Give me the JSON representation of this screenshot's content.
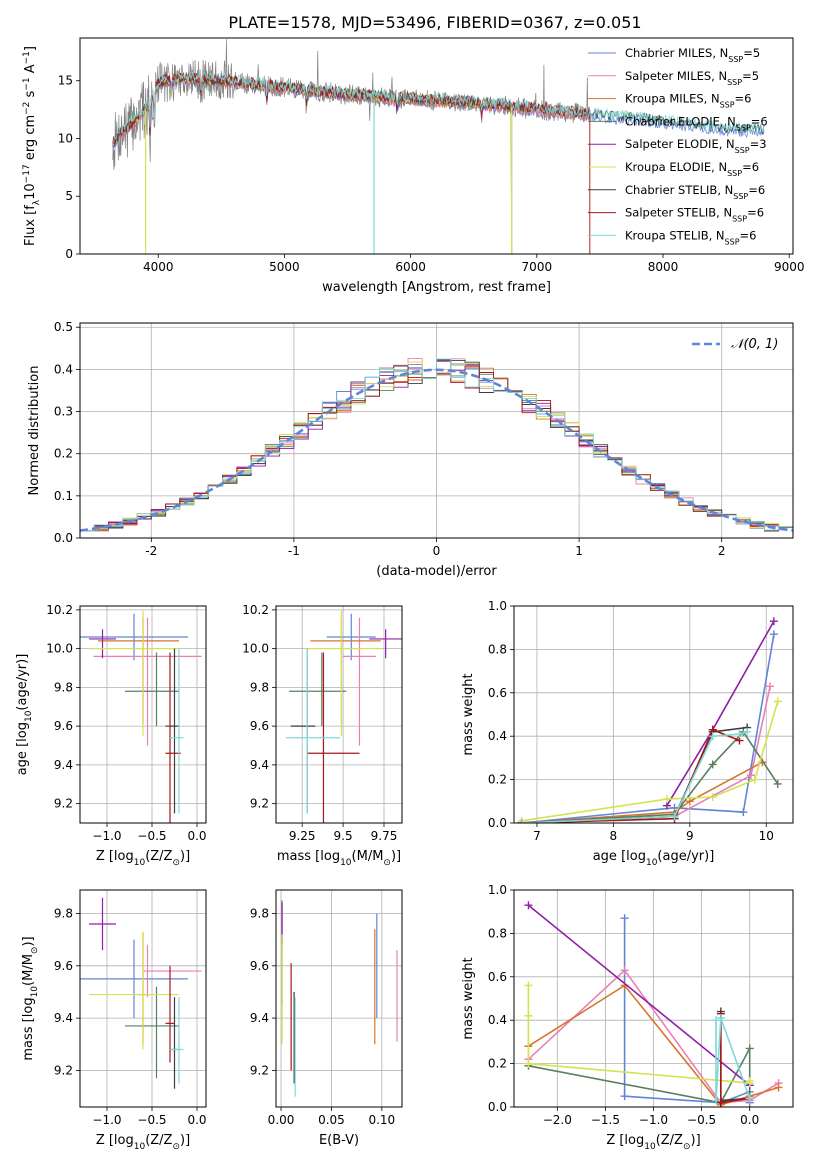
{
  "figure": {
    "title": "PLATE=1578, MJD=53496, FIBERID=0367, z=0.051",
    "colors": [
      "#5f86d6",
      "#e97fb6",
      "#d6752d",
      "#5a7f5f",
      "#8f1fa6",
      "#d4e24f",
      "#3d3d3d",
      "#a91616",
      "#7fd8d8"
    ]
  },
  "legend": {
    "models": [
      {
        "name": "Chabrier MILES",
        "sub": "SSP",
        "n": "=5"
      },
      {
        "name": "Salpeter MILES",
        "sub": "SSP",
        "n": "=5"
      },
      {
        "name": "Kroupa MILES",
        "sub": "SSP",
        "n": "=6"
      },
      {
        "name": "Chabrier ELODIE",
        "sub": "SSP",
        "n": "=6"
      },
      {
        "name": "Salpeter ELODIE",
        "sub": "SSP",
        "n": "=3"
      },
      {
        "name": "Kroupa ELODIE",
        "sub": "SSP",
        "n": "=6"
      },
      {
        "name": "Chabrier STELIB",
        "sub": "SSP",
        "n": "=6"
      },
      {
        "name": "Salpeter STELIB",
        "sub": "SSP",
        "n": "=6"
      },
      {
        "name": "Kroupa STELIB",
        "sub": "SSP",
        "n": "=6"
      }
    ]
  },
  "chart_data": [
    {
      "id": "spectrum",
      "type": "line",
      "xlabel": "wavelength [Angstrom, rest frame]",
      "ylabel_parts": {
        "a": "Flux [f",
        "a_sub": "λ",
        "b": "10",
        "b_sup": "−17",
        "c": " erg cm",
        "c_sup": "−2",
        "d": " s",
        "d_sup": "−1",
        "e": " A",
        "e_sup": "−1",
        "f": "]"
      },
      "xlim": [
        3380,
        9030
      ],
      "ylim": [
        0,
        18.7
      ],
      "xticks": [
        4000,
        5000,
        6000,
        7000,
        8000,
        9000
      ],
      "yticks": [
        0,
        5,
        10,
        15
      ],
      "grid": false,
      "legend_position": "upper right",
      "data_series": {
        "name": "",
        "x_range": [
          3640,
          7420
        ],
        "color": "#808080"
      },
      "model_series": {
        "x_range": [
          3640,
          8800
        ],
        "color": "#7fd8d8"
      },
      "continuum_shape": [
        [
          3640,
          9.5
        ],
        [
          3700,
          10.5
        ],
        [
          3800,
          11.3
        ],
        [
          3900,
          12.6
        ],
        [
          4000,
          14.8
        ],
        [
          4200,
          15.2
        ],
        [
          4500,
          15.0
        ],
        [
          5000,
          14.4
        ],
        [
          5500,
          13.8
        ],
        [
          6000,
          13.4
        ],
        [
          6500,
          13.1
        ],
        [
          7000,
          12.5
        ],
        [
          7500,
          12.0
        ],
        [
          8000,
          11.5
        ],
        [
          8500,
          10.8
        ],
        [
          8800,
          10.7
        ]
      ]
    },
    {
      "id": "residuals",
      "type": "step",
      "xlabel": "(data-model)/error",
      "ylabel": "Normed distribution",
      "xlim": [
        -2.5,
        2.5
      ],
      "ylim": [
        0,
        0.51
      ],
      "xticks": [
        -2,
        -1,
        0,
        1,
        2
      ],
      "yticks": [
        0.0,
        0.1,
        0.2,
        0.3,
        0.4,
        0.5
      ],
      "grid": true,
      "bin_width": 0.1,
      "bin_start": -2.5,
      "bin_count": 50,
      "reference": {
        "label": "𝒩(0, 1)",
        "mean": 0,
        "sigma": 1,
        "color": "#5f86d6"
      },
      "legend_position": "upper right"
    },
    {
      "id": "age-z",
      "type": "errorbar",
      "xlabel_parts": {
        "a": "Z [log",
        "a_sub": "10",
        "b": "(Z/Z",
        "b_sub": "⊙",
        "c": ")]"
      },
      "ylabel_parts": {
        "a": "age  [log",
        "a_sub": "10",
        "b": "(age/yr)]"
      },
      "xlim": [
        -1.3,
        0.1
      ],
      "ylim": [
        9.1,
        10.22
      ],
      "xticks": [
        -1.0,
        -0.5,
        0.0
      ],
      "xticklabels": [
        "−1.0",
        "−0.5",
        "0.0"
      ],
      "yticks": [
        9.2,
        9.4,
        9.6,
        9.8,
        10.0,
        10.2
      ],
      "grid": true,
      "points": [
        {
          "x": -0.7,
          "y": 10.06,
          "xerr": [
            0.6,
            0.6
          ],
          "yerr": [
            0.12,
            0.12
          ]
        },
        {
          "x": -0.55,
          "y": 9.96,
          "xerr": [
            0.6,
            0.6
          ],
          "yerr": [
            0.46,
            0.2
          ]
        },
        {
          "x": -0.6,
          "y": 10.04,
          "xerr": [
            0.5,
            0.4
          ],
          "yerr": [
            0.43,
            0.12
          ]
        },
        {
          "x": -0.45,
          "y": 9.78,
          "xerr": [
            0.35,
            0.25
          ],
          "yerr": [
            0.18,
            0.2
          ]
        },
        {
          "x": -1.05,
          "y": 10.05,
          "xerr": [
            0.15,
            0.15
          ],
          "yerr": [
            0.1,
            0.05
          ]
        },
        {
          "x": -0.6,
          "y": 10.0,
          "xerr": [
            0.6,
            0.4
          ],
          "yerr": [
            0.45,
            0.2
          ]
        },
        {
          "x": -0.25,
          "y": 9.6,
          "xerr": [
            0.1,
            0.05
          ],
          "yerr": [
            0.45,
            0.4
          ]
        },
        {
          "x": -0.3,
          "y": 9.46,
          "xerr": [
            0.05,
            0.12
          ],
          "yerr": [
            0.36,
            0.52
          ]
        },
        {
          "x": -0.2,
          "y": 9.54,
          "xerr": [
            0.1,
            0.05
          ],
          "yerr": [
            0.39,
            0.46
          ]
        }
      ]
    },
    {
      "id": "age-mass",
      "type": "errorbar",
      "xlabel_parts": {
        "a": "mass [log",
        "a_sub": "10",
        "b": "(M/M",
        "b_sub": "⊙",
        "c": ")]"
      },
      "xlim": [
        9.09,
        9.86
      ],
      "ylim": [
        9.1,
        10.22
      ],
      "xticks": [
        9.25,
        9.5,
        9.75
      ],
      "yticks": [
        9.2,
        9.4,
        9.6,
        9.8,
        10.0,
        10.2
      ],
      "grid": true,
      "points": [
        {
          "x": 9.55,
          "y": 10.06,
          "xerr": [
            0.15,
            0.15
          ],
          "yerr": [
            0.12,
            0.12
          ]
        },
        {
          "x": 9.6,
          "y": 9.96,
          "xerr": [
            0.1,
            0.1
          ],
          "yerr": [
            0.46,
            0.2
          ]
        },
        {
          "x": 9.49,
          "y": 10.04,
          "xerr": [
            0.19,
            0.24
          ],
          "yerr": [
            0.43,
            0.12
          ]
        },
        {
          "x": 9.37,
          "y": 9.78,
          "xerr": [
            0.2,
            0.15
          ],
          "yerr": [
            0.18,
            0.2
          ]
        },
        {
          "x": 9.76,
          "y": 10.05,
          "xerr": [
            0.1,
            0.1
          ],
          "yerr": [
            0.1,
            0.05
          ]
        },
        {
          "x": 9.49,
          "y": 10.0,
          "xerr": [
            0.21,
            0.24
          ],
          "yerr": [
            0.45,
            0.2
          ]
        },
        {
          "x": 9.28,
          "y": 9.6,
          "xerr": [
            0.1,
            0.05
          ],
          "yerr": [
            0.45,
            0.4
          ]
        },
        {
          "x": 9.38,
          "y": 9.46,
          "xerr": [
            0.1,
            0.22
          ],
          "yerr": [
            0.36,
            0.52
          ]
        },
        {
          "x": 9.28,
          "y": 9.54,
          "xerr": [
            0.13,
            0.2
          ],
          "yerr": [
            0.39,
            0.46
          ]
        }
      ]
    },
    {
      "id": "mw-age",
      "type": "line",
      "xlabel_parts": {
        "a": "age  [log",
        "a_sub": "10",
        "b": "(age/yr)]"
      },
      "ylabel": "mass weight",
      "xlim": [
        6.7,
        10.35
      ],
      "ylim": [
        0,
        1.0
      ],
      "xticks": [
        7,
        8,
        9,
        10
      ],
      "yticks": [
        0.0,
        0.2,
        0.4,
        0.6,
        0.8,
        1.0
      ],
      "grid": true,
      "series": [
        {
          "x": [
            6.8,
            8.8,
            9.7,
            10.1
          ],
          "y": [
            0.0,
            0.07,
            0.05,
            0.87
          ]
        },
        {
          "x": [
            6.8,
            8.8,
            9.8,
            10.05
          ],
          "y": [
            0.0,
            0.03,
            0.22,
            0.63
          ]
        },
        {
          "x": [
            6.8,
            8.8,
            9.0,
            9.95
          ],
          "y": [
            0.0,
            0.05,
            0.1,
            0.28
          ]
        },
        {
          "x": [
            6.8,
            8.8,
            9.3,
            9.7,
            10.15
          ],
          "y": [
            0.0,
            0.04,
            0.27,
            0.42,
            0.18
          ]
        },
        {
          "x": [
            8.7,
            9.3,
            10.1
          ],
          "y": [
            0.08,
            0.43,
            0.93
          ]
        },
        {
          "x": [
            6.8,
            8.7,
            9.3,
            9.85,
            10.15
          ],
          "y": [
            0.01,
            0.11,
            0.12,
            0.2,
            0.56
          ]
        },
        {
          "x": [
            6.8,
            8.8,
            9.3,
            9.75
          ],
          "y": [
            0.0,
            0.03,
            0.42,
            0.44
          ]
        },
        {
          "x": [
            6.8,
            8.8,
            9.3,
            9.65
          ],
          "y": [
            0.0,
            0.02,
            0.43,
            0.38
          ]
        },
        {
          "x": [
            6.8,
            8.8,
            9.3,
            9.65,
            9.75
          ],
          "y": [
            0.0,
            0.03,
            0.4,
            0.41,
            0.42
          ]
        }
      ]
    },
    {
      "id": "mass-z",
      "type": "errorbar",
      "xlabel_parts": {
        "a": "Z [log",
        "a_sub": "10",
        "b": "(Z/Z",
        "b_sub": "⊙",
        "c": ")]"
      },
      "ylabel_parts": {
        "a": "mass [log",
        "a_sub": "10",
        "b": "(M/M",
        "b_sub": "⊙",
        "c": ")]"
      },
      "xlim": [
        -1.3,
        0.1
      ],
      "ylim": [
        9.06,
        9.89
      ],
      "xticks": [
        -1.0,
        -0.5,
        0.0
      ],
      "xticklabels": [
        "−1.0",
        "−0.5",
        "0.0"
      ],
      "yticks": [
        9.2,
        9.4,
        9.6,
        9.8
      ],
      "grid": true,
      "points": [
        {
          "x": -0.7,
          "y": 9.55,
          "xerr": [
            0.6,
            0.6
          ],
          "yerr": [
            0.15,
            0.15
          ]
        },
        {
          "x": -0.55,
          "y": 9.58,
          "xerr": [
            0.05,
            0.6
          ],
          "yerr": [
            0.1,
            0.1
          ]
        },
        {
          "x": -0.6,
          "y": 9.49,
          "xerr": [
            0.05,
            0.05
          ],
          "yerr": [
            0.19,
            0.24
          ]
        },
        {
          "x": -0.45,
          "y": 9.37,
          "xerr": [
            0.35,
            0.25
          ],
          "yerr": [
            0.2,
            0.15
          ]
        },
        {
          "x": -1.05,
          "y": 9.76,
          "xerr": [
            0.15,
            0.15
          ],
          "yerr": [
            0.1,
            0.1
          ]
        },
        {
          "x": -0.6,
          "y": 9.49,
          "xerr": [
            0.6,
            0.4
          ],
          "yerr": [
            0.21,
            0.24
          ]
        },
        {
          "x": -0.25,
          "y": 9.28,
          "xerr": [
            0.05,
            0.05
          ],
          "yerr": [
            0.15,
            0.2
          ]
        },
        {
          "x": -0.3,
          "y": 9.38,
          "xerr": [
            0.05,
            0.05
          ],
          "yerr": [
            0.15,
            0.22
          ]
        },
        {
          "x": -0.2,
          "y": 9.28,
          "xerr": [
            0.1,
            0.05
          ],
          "yerr": [
            0.13,
            0.2
          ]
        }
      ]
    },
    {
      "id": "mass-ebv",
      "type": "errorbar",
      "xlabel": "E(B-V)",
      "xlim": [
        -0.005,
        0.12
      ],
      "ylim": [
        9.06,
        9.89
      ],
      "xticks": [
        0.0,
        0.05,
        0.1
      ],
      "xticklabels": [
        "0.00",
        "0.05",
        "0.10"
      ],
      "yticks": [
        9.2,
        9.4,
        9.6,
        9.8
      ],
      "grid": true,
      "points": [
        {
          "x": 0.095,
          "y": 9.55,
          "xerr": [
            0,
            0
          ],
          "yerr": [
            0.15,
            0.25
          ]
        },
        {
          "x": 0.115,
          "y": 9.48,
          "xerr": [
            0,
            0
          ],
          "yerr": [
            0.17,
            0.18
          ]
        },
        {
          "x": 0.093,
          "y": 9.5,
          "xerr": [
            0,
            0
          ],
          "yerr": [
            0.2,
            0.24
          ]
        },
        {
          "x": 0.001,
          "y": 9.6,
          "xerr": [
            0,
            0
          ],
          "yerr": [
            0.15,
            0.25
          ]
        },
        {
          "x": 0.001,
          "y": 9.76,
          "xerr": [
            0,
            0
          ],
          "yerr": [
            0.08,
            0.08
          ]
        },
        {
          "x": 0.001,
          "y": 9.5,
          "xerr": [
            0,
            0
          ],
          "yerr": [
            0.2,
            0.22
          ]
        },
        {
          "x": 0.013,
          "y": 9.3,
          "xerr": [
            0,
            0
          ],
          "yerr": [
            0.15,
            0.2
          ]
        },
        {
          "x": 0.01,
          "y": 9.4,
          "xerr": [
            0,
            0
          ],
          "yerr": [
            0.2,
            0.21
          ]
        },
        {
          "x": 0.014,
          "y": 9.28,
          "xerr": [
            0,
            0
          ],
          "yerr": [
            0.18,
            0.2
          ]
        }
      ]
    },
    {
      "id": "mw-z",
      "type": "line",
      "xlabel_parts": {
        "a": "Z [log",
        "a_sub": "10",
        "b": "(Z/Z",
        "b_sub": "⊙",
        "c": ")]"
      },
      "ylabel": "mass weight",
      "xlim": [
        -2.45,
        0.45
      ],
      "ylim": [
        0,
        1.0
      ],
      "xticks": [
        -2.0,
        -1.5,
        -1.0,
        -0.5,
        0.0
      ],
      "xticklabels": [
        "−2.0",
        "−1.5",
        "−1.0",
        "−0.5",
        "0.0"
      ],
      "yticks": [
        0.0,
        0.2,
        0.4,
        0.6,
        0.8,
        1.0
      ],
      "grid": true,
      "series": [
        {
          "x": [
            -1.3,
            -1.3,
            -0.3,
            0.0,
            0.0
          ],
          "y": [
            0.87,
            0.05,
            0.02,
            0.07,
            0.02
          ]
        },
        {
          "x": [
            -2.3,
            -1.3,
            -0.3,
            0.0,
            0.3
          ],
          "y": [
            0.22,
            0.63,
            0.02,
            0.03,
            0.11
          ]
        },
        {
          "x": [
            -2.3,
            -1.3,
            -0.3,
            0.0,
            0.3
          ],
          "y": [
            0.28,
            0.56,
            0.01,
            0.05,
            0.09
          ]
        },
        {
          "x": [
            -2.3,
            -0.3,
            0.0,
            0.0
          ],
          "y": [
            0.19,
            0.02,
            0.27,
            0.04
          ]
        },
        {
          "x": [
            -2.3,
            0.0
          ],
          "y": [
            0.93,
            0.1
          ]
        },
        {
          "x": [
            -2.3,
            -2.3,
            -2.3,
            0.0,
            0.0
          ],
          "y": [
            0.56,
            0.42,
            0.2,
            0.11,
            0.12
          ]
        },
        {
          "x": [
            -0.3,
            -0.3,
            -0.3,
            0.0
          ],
          "y": [
            0.44,
            0.03,
            0.03,
            0.04
          ]
        },
        {
          "x": [
            -0.3,
            -0.3,
            -0.3,
            0.0
          ],
          "y": [
            0.43,
            0.02,
            0.02,
            0.04
          ]
        },
        {
          "x": [
            -0.35,
            -0.35,
            -0.3,
            0.0
          ],
          "y": [
            0.4,
            0.03,
            0.41,
            0.04
          ]
        }
      ]
    }
  ]
}
